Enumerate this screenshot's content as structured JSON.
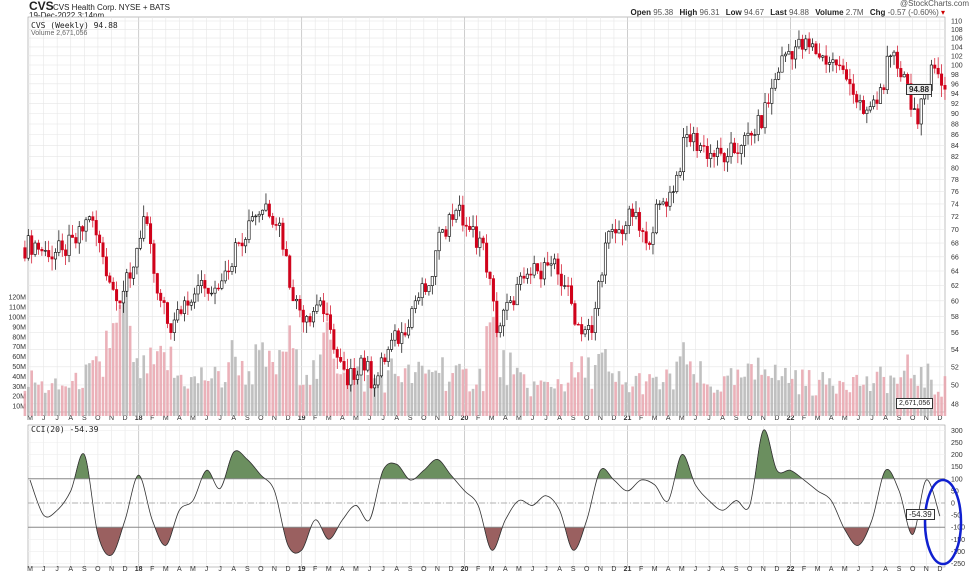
{
  "header": {
    "symbol": "CVS",
    "company": "CVS Health Corp. NYSE + BATS",
    "datetime": "19-Dec-2022 3:14pm",
    "brand": "@StockCharts.com",
    "open_label": "Open",
    "open": "95.38",
    "high_label": "High",
    "high": "96.31",
    "low_label": "Low",
    "low": "94.67",
    "last_label": "Last",
    "last": "94.88",
    "volume_label": "Volume",
    "volume": "2.7M",
    "chg_label": "Chg",
    "chg": "-0.57 (-0.60%)",
    "chg_arrow": "▾"
  },
  "legends": {
    "price": "CVS (Weekly) 94.88",
    "volume": "Volume 2,671,056",
    "cci": "CCI(20) -54.39"
  },
  "tags": {
    "price": "94.88",
    "volume": "2,671,056",
    "cci": "-54.39"
  },
  "colors": {
    "down": "#d0021b",
    "up": "#000000",
    "vol_down": "#e8a3ad",
    "vol_up": "#b5b5b5",
    "cci_pos": "#6b8f5f",
    "cci_neg": "#9a6060",
    "annotation": "#1020d0"
  },
  "chart_data": [
    {
      "type": "candlestick",
      "title": "CVS (Weekly)",
      "scale": "log",
      "ylim": [
        48,
        110
      ],
      "yticks": [
        110,
        108,
        106,
        104,
        102,
        100,
        98,
        96,
        94,
        92,
        90,
        88,
        86,
        84,
        82,
        80,
        78,
        76,
        74,
        72,
        70,
        68,
        66,
        64,
        62,
        60,
        58,
        56,
        54,
        52,
        50,
        48
      ],
      "x_labels": [
        "M",
        "J",
        "J",
        "A",
        "S",
        "O",
        "N",
        "D",
        "18",
        "F",
        "M",
        "A",
        "M",
        "J",
        "J",
        "A",
        "S",
        "O",
        "N",
        "D",
        "19",
        "F",
        "M",
        "A",
        "M",
        "J",
        "J",
        "A",
        "S",
        "O",
        "N",
        "D",
        "20",
        "F",
        "M",
        "A",
        "M",
        "J",
        "J",
        "A",
        "S",
        "O",
        "N",
        "D",
        "21",
        "F",
        "M",
        "A",
        "M",
        "J",
        "J",
        "A",
        "S",
        "O",
        "N",
        "D",
        "22",
        "F",
        "M",
        "A",
        "M",
        "J",
        "J",
        "A",
        "S",
        "O",
        "N",
        "D"
      ],
      "monthly_close": [
        68,
        66,
        67,
        68,
        72,
        66,
        60,
        63,
        72,
        61,
        56,
        60,
        62,
        61,
        64,
        68,
        72,
        74,
        71,
        60,
        58,
        60,
        54,
        50,
        53,
        50,
        54,
        56,
        60,
        62,
        70,
        73,
        70,
        68,
        56,
        60,
        63,
        64,
        65,
        62,
        57,
        56,
        68,
        70,
        72,
        68,
        74,
        76,
        86,
        84,
        82,
        82,
        84,
        86,
        92,
        102,
        104,
        104,
        102,
        100,
        96,
        90,
        92,
        102,
        98,
        88,
        100,
        94.88
      ]
    },
    {
      "type": "bar",
      "title": "Volume",
      "yticks": [
        "120M",
        "110M",
        "100M",
        "90M",
        "80M",
        "70M",
        "60M",
        "50M",
        "40M",
        "30M",
        "20M",
        "10M"
      ],
      "ylim": [
        0,
        125
      ],
      "monthly_volume_m": [
        35,
        30,
        28,
        32,
        40,
        45,
        80,
        100,
        45,
        50,
        55,
        40,
        35,
        40,
        38,
        60,
        45,
        55,
        50,
        70,
        50,
        45,
        75,
        55,
        40,
        35,
        38,
        45,
        40,
        42,
        50,
        40,
        38,
        40,
        85,
        50,
        35,
        30,
        30,
        35,
        40,
        45,
        55,
        35,
        30,
        35,
        32,
        35,
        55,
        40,
        30,
        32,
        35,
        40,
        60,
        40,
        40,
        35,
        32,
        35,
        40,
        35,
        32,
        38,
        35,
        45,
        38,
        30
      ]
    },
    {
      "type": "line",
      "title": "CCI(20)",
      "ylim": [
        -260,
        320
      ],
      "yticks": [
        300,
        250,
        200,
        150,
        100,
        50,
        0,
        -50,
        -100,
        -150,
        -200,
        -250
      ],
      "reference_lines": [
        100,
        0,
        -100
      ],
      "monthly_values": [
        95,
        -50,
        -30,
        50,
        200,
        -130,
        -215,
        -70,
        115,
        -70,
        -175,
        -30,
        10,
        135,
        60,
        210,
        180,
        115,
        50,
        -175,
        -195,
        -70,
        -150,
        -70,
        -10,
        -70,
        135,
        160,
        95,
        135,
        180,
        115,
        50,
        -10,
        -195,
        -70,
        10,
        -10,
        30,
        -30,
        -195,
        -70,
        135,
        95,
        50,
        95,
        75,
        10,
        200,
        75,
        10,
        -30,
        10,
        -10,
        300,
        135,
        135,
        95,
        50,
        10,
        -110,
        -175,
        -70,
        135,
        50,
        -130,
        95,
        -54.39
      ]
    }
  ]
}
